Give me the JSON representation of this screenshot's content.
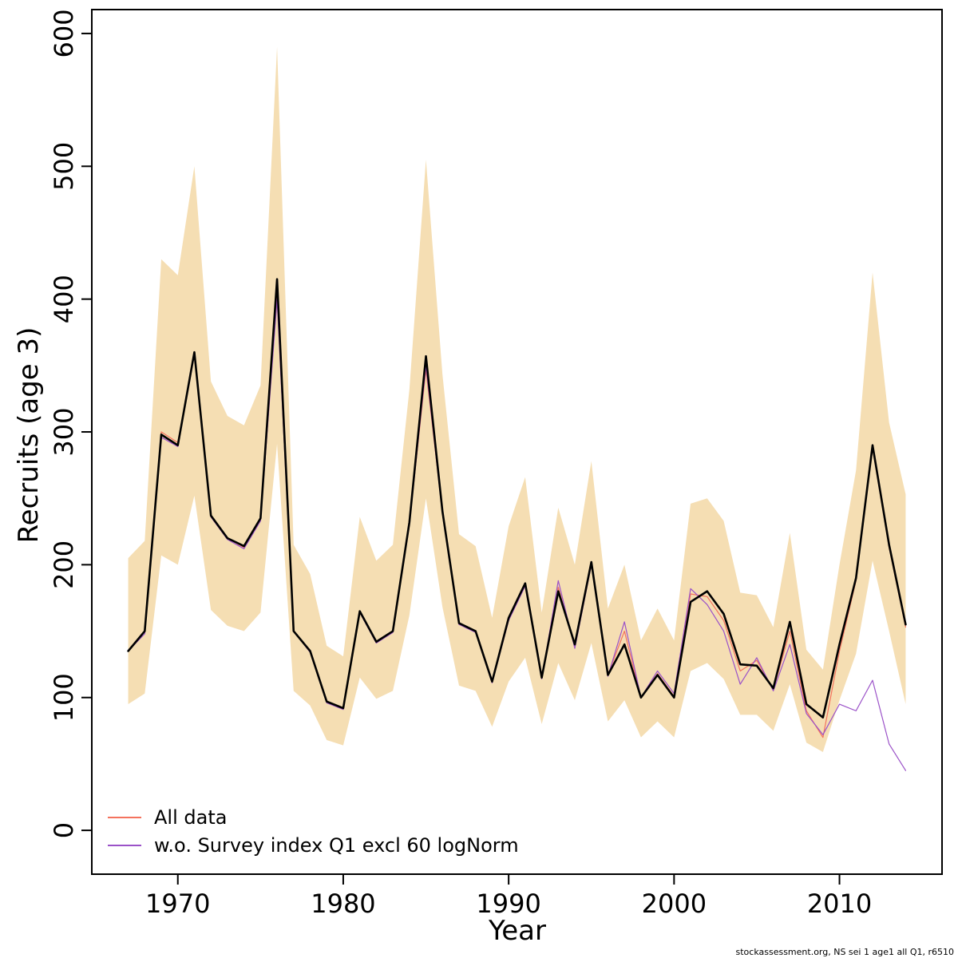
{
  "figure": {
    "footer": "stockassessment.org, NS sei 1 age1 all Q1, r6510"
  },
  "chart_data": {
    "type": "line",
    "title": "",
    "xlabel": "Year",
    "ylabel": "Recruits (age 3)",
    "xlim": [
      1964.8,
      2016.2
    ],
    "ylim": [
      0,
      600
    ],
    "x_ticks": [
      1970,
      1980,
      1990,
      2000,
      2010
    ],
    "y_ticks": [
      0,
      100,
      200,
      300,
      400,
      500,
      600
    ],
    "grid": false,
    "legend_position": "bottom-left",
    "x": [
      1967,
      1968,
      1969,
      1970,
      1971,
      1972,
      1973,
      1974,
      1975,
      1976,
      1977,
      1978,
      1979,
      1980,
      1981,
      1982,
      1983,
      1984,
      1985,
      1986,
      1987,
      1988,
      1989,
      1990,
      1991,
      1992,
      1993,
      1994,
      1995,
      1996,
      1997,
      1998,
      1999,
      2000,
      2001,
      2002,
      2003,
      2004,
      2005,
      2006,
      2007,
      2008,
      2009,
      2010,
      2011,
      2012,
      2013,
      2014
    ],
    "band": {
      "name": "confidence-band-base-run",
      "color": "#f5deb3",
      "lower": [
        95,
        103,
        207,
        200,
        252,
        166,
        154,
        150,
        164,
        291,
        105,
        94,
        68,
        64,
        115,
        99,
        105,
        162,
        250,
        168,
        109,
        105,
        78,
        112,
        130,
        80,
        126,
        98,
        141,
        82,
        98,
        70,
        82,
        70,
        120,
        126,
        114,
        87,
        87,
        75,
        110,
        66,
        59,
        98,
        133,
        203,
        150,
        95
      ],
      "upper": [
        205,
        218,
        430,
        418,
        500,
        338,
        312,
        305,
        335,
        590,
        215,
        193,
        139,
        131,
        236,
        203,
        215,
        332,
        505,
        343,
        223,
        214,
        160,
        229,
        266,
        164,
        243,
        200,
        278,
        167,
        200,
        143,
        167,
        143,
        246,
        250,
        233,
        179,
        177,
        153,
        224,
        136,
        121,
        200,
        271,
        420,
        307,
        253
      ]
    },
    "series": [
      {
        "name": "base",
        "color": "#000000",
        "width": 2.6,
        "values": [
          135,
          150,
          298,
          290,
          360,
          237,
          220,
          214,
          235,
          415,
          150,
          135,
          97,
          92,
          165,
          142,
          150,
          232,
          357,
          240,
          156,
          150,
          112,
          160,
          186,
          115,
          180,
          140,
          202,
          117,
          140,
          100,
          117,
          100,
          172,
          180,
          163,
          125,
          124,
          107,
          157,
          95,
          85,
          140,
          190,
          290,
          215,
          155
        ]
      },
      {
        "name": "All data",
        "color": "#f4735e",
        "width": 1.2,
        "values": [
          135,
          150,
          300,
          292,
          359,
          237,
          220,
          213,
          234,
          402,
          150,
          135,
          97,
          92,
          165,
          142,
          150,
          231,
          347,
          239,
          156,
          150,
          112,
          159,
          185,
          115,
          183,
          139,
          201,
          117,
          150,
          100,
          118,
          101,
          178,
          176,
          158,
          120,
          128,
          106,
          150,
          90,
          70,
          135,
          188,
          288,
          213,
          153
        ]
      },
      {
        "name": "w.o. Survey index Q1 excl 60 logNorm",
        "color": "#9b52c8",
        "width": 1.2,
        "values": [
          135,
          148,
          296,
          289,
          358,
          236,
          219,
          212,
          233,
          400,
          150,
          134,
          96,
          91,
          164,
          141,
          149,
          230,
          350,
          238,
          155,
          149,
          111,
          158,
          184,
          114,
          188,
          137,
          200,
          116,
          157,
          100,
          120,
          103,
          182,
          170,
          150,
          110,
          130,
          105,
          140,
          88,
          72,
          95,
          90,
          113,
          65,
          45
        ]
      }
    ],
    "legend": [
      {
        "label": "All data",
        "color": "#f4735e"
      },
      {
        "label": "w.o. Survey index Q1 excl 60 logNorm",
        "color": "#9b52c8"
      }
    ]
  }
}
